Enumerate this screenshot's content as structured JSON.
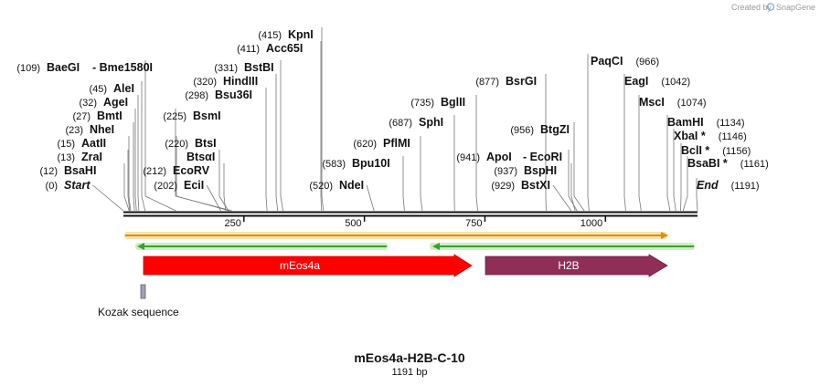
{
  "credit": {
    "prefix": "Created by",
    "brand": "SnapGene"
  },
  "plasmid": {
    "name": "mEos4a-H2B-C-10",
    "length_label": "1191 bp",
    "length": 1191
  },
  "ruler": {
    "ticks": [
      {
        "pos": 250,
        "label": "250"
      },
      {
        "pos": 500,
        "label": "500"
      },
      {
        "pos": 750,
        "label": "750"
      },
      {
        "pos": 1000,
        "label": "1000"
      }
    ]
  },
  "sites": [
    {
      "id": "start",
      "name": "Start",
      "pos_label": "(0)",
      "pos": 0,
      "italic": true
    },
    {
      "id": "bsahi",
      "name": "BsaHI",
      "pos_label": "(12)",
      "pos": 12
    },
    {
      "id": "zrai",
      "name": "ZraI",
      "pos_label": "(13)",
      "pos": 13
    },
    {
      "id": "aatii",
      "name": "AatII",
      "pos_label": "(15)",
      "pos": 15
    },
    {
      "id": "nhei",
      "name": "NheI",
      "pos_label": "(23)",
      "pos": 23
    },
    {
      "id": "bmti",
      "name": "BmtI",
      "pos_label": "(27)",
      "pos": 27
    },
    {
      "id": "agei",
      "name": "AgeI",
      "pos_label": "(32)",
      "pos": 32
    },
    {
      "id": "alei",
      "name": "AleI",
      "pos_label": "(45)",
      "pos": 45
    },
    {
      "id": "baegi",
      "name": "BaeGI",
      "pos_label": "(109)",
      "pos": 109
    },
    {
      "id": "bme1580i",
      "name": "- Bme1580I",
      "pos_label": "",
      "pos": 109
    },
    {
      "id": "ecii",
      "name": "EciI",
      "pos_label": "(202)",
      "pos": 202
    },
    {
      "id": "ecorv",
      "name": "EcoRV",
      "pos_label": "(212)",
      "pos": 212
    },
    {
      "id": "btsgi",
      "name": "BtsαI",
      "pos_label": "",
      "pos": 218
    },
    {
      "id": "btsi",
      "name": "BtsI",
      "pos_label": "(220)",
      "pos": 220
    },
    {
      "id": "bsmi",
      "name": "BsmI",
      "pos_label": "(225)",
      "pos": 225
    },
    {
      "id": "bsu36i",
      "name": "Bsu36I",
      "pos_label": "(298)",
      "pos": 298
    },
    {
      "id": "hindiii",
      "name": "HindIII",
      "pos_label": "(320)",
      "pos": 320
    },
    {
      "id": "bstbi",
      "name": "BstBI",
      "pos_label": "(331)",
      "pos": 331
    },
    {
      "id": "acc65i",
      "name": "Acc65I",
      "pos_label": "(411)",
      "pos": 411
    },
    {
      "id": "kpni",
      "name": "KpnI",
      "pos_label": "(415)",
      "pos": 415
    },
    {
      "id": "ndei",
      "name": "NdeI",
      "pos_label": "(520)",
      "pos": 520
    },
    {
      "id": "bpu10i",
      "name": "Bpu10I",
      "pos_label": "(583)",
      "pos": 583
    },
    {
      "id": "pflmi",
      "name": "PflMI",
      "pos_label": "(620)",
      "pos": 620
    },
    {
      "id": "sphi",
      "name": "SphI",
      "pos_label": "(687)",
      "pos": 687
    },
    {
      "id": "bglii",
      "name": "BglII",
      "pos_label": "(735)",
      "pos": 735
    },
    {
      "id": "bsrgi",
      "name": "BsrGI",
      "pos_label": "(877)",
      "pos": 877
    },
    {
      "id": "apoi",
      "name": "ApoI",
      "pos_label": "(941)",
      "pos": 941
    },
    {
      "id": "ecori",
      "name": "- EcoRI",
      "pos_label": "",
      "pos": 941
    },
    {
      "id": "bspHI",
      "name": "BspHI",
      "pos_label": "(937)",
      "pos": 937
    },
    {
      "id": "bstxi",
      "name": "BstXI",
      "pos_label": "(929)",
      "pos": 929
    },
    {
      "id": "btgzi",
      "name": "BtgZI",
      "pos_label": "(956)",
      "pos": 956
    },
    {
      "id": "paqci",
      "name": "PaqCI",
      "pos_label": "(966)",
      "pos": 966
    },
    {
      "id": "eagi",
      "name": "EagI",
      "pos_label": "(1042)",
      "pos": 1042
    },
    {
      "id": "msci",
      "name": "MscI",
      "pos_label": "(1074)",
      "pos": 1074
    },
    {
      "id": "bamhi",
      "name": "BamHI",
      "pos_label": "(1134)",
      "pos": 1134
    },
    {
      "id": "xbai",
      "name": "XbaI *",
      "pos_label": "(1146)",
      "pos": 1146
    },
    {
      "id": "bcli",
      "name": "BclI *",
      "pos_label": "(1156)",
      "pos": 1156
    },
    {
      "id": "bsabi",
      "name": "BsaBI *",
      "pos_label": "(1161)",
      "pos": 1161
    },
    {
      "id": "end",
      "name": "End",
      "pos_label": "(1191)",
      "pos": 1191,
      "italic": true
    }
  ],
  "features": [
    {
      "id": "meos4a",
      "label": "mEos4a",
      "start": 12,
      "end": 702,
      "color": "#ff0000",
      "stroke": "#cc0000"
    },
    {
      "id": "h2b",
      "label": "H2B",
      "start": 730,
      "end": 1134,
      "color": "#8f2e57",
      "stroke": "#6e2242"
    },
    {
      "id": "kozak",
      "label": "Kozak sequence",
      "start": 12,
      "end": 22,
      "color": "#a0a0b8",
      "stroke": "#606070"
    }
  ],
  "colors": {
    "orf_orange": "#e08a1e",
    "orf_halo": "#f6e6a6",
    "orf_green": "#2ea62e",
    "orf_green_halo": "#cfeec0",
    "backbone": "#111111"
  }
}
